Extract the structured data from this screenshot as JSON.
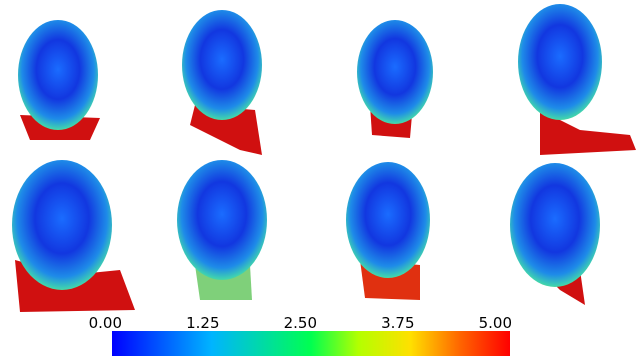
{
  "colorbar": {
    "range": [
      0,
      5
    ],
    "ticks": [
      {
        "value": 0,
        "label": "0.00"
      },
      {
        "value": 1.25,
        "label": "1.25"
      },
      {
        "value": 2.5,
        "label": "2.50"
      },
      {
        "value": 3.75,
        "label": "3.75"
      },
      {
        "value": 5,
        "label": "5.00"
      }
    ]
  }
}
